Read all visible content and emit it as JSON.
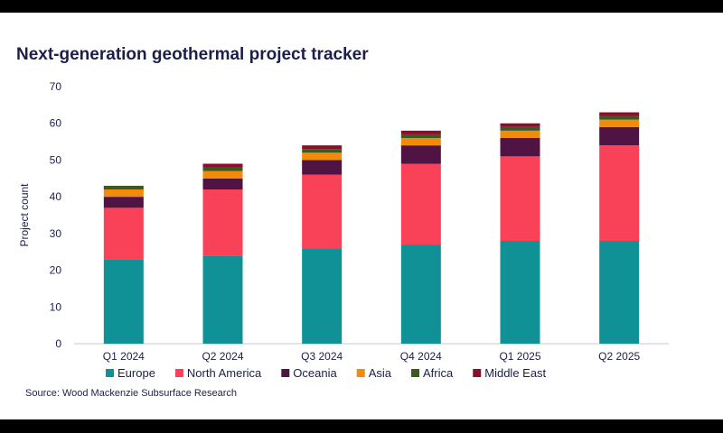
{
  "title": "Next-generation geothermal project tracker",
  "source": "Source: Wood Mackenzie Subsurface Research",
  "chart_data": {
    "type": "bar",
    "stacked": true,
    "title": "Next-generation geothermal project tracker",
    "ylabel": "Project count",
    "xlabel": "",
    "ylim": [
      0,
      70
    ],
    "yticks": [
      0,
      10,
      20,
      30,
      40,
      50,
      60,
      70
    ],
    "grid": false,
    "legend_position": "bottom",
    "categories": [
      "Q1 2024",
      "Q2 2024",
      "Q3 2024",
      "Q4 2024",
      "Q1 2025",
      "Q2 2025"
    ],
    "series": [
      {
        "name": "Europe",
        "color": "#0f9196",
        "values": [
          23,
          24,
          26,
          27,
          28,
          28
        ]
      },
      {
        "name": "North America",
        "color": "#f94257",
        "values": [
          14,
          18,
          20,
          22,
          23,
          26
        ]
      },
      {
        "name": "Oceania",
        "color": "#4f1444",
        "values": [
          3,
          3,
          4,
          5,
          5,
          5
        ]
      },
      {
        "name": "Asia",
        "color": "#f28a0c",
        "values": [
          2,
          2,
          2,
          2,
          2,
          2
        ]
      },
      {
        "name": "Africa",
        "color": "#3a5a1f",
        "values": [
          1,
          1,
          1,
          1,
          1,
          1
        ]
      },
      {
        "name": "Middle East",
        "color": "#8b0f2a",
        "values": [
          0,
          1,
          1,
          1,
          1,
          1
        ]
      }
    ]
  }
}
